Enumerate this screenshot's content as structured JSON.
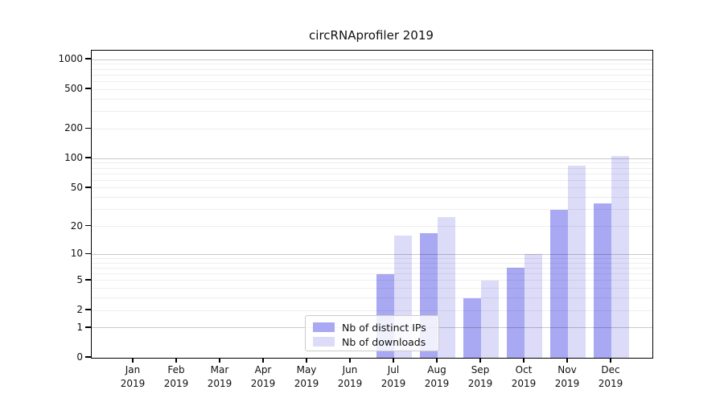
{
  "chart_data": {
    "type": "bar",
    "title": "circRNAprofiler 2019",
    "categories": [
      "Jan",
      "Feb",
      "Mar",
      "Apr",
      "May",
      "Jun",
      "Jul",
      "Aug",
      "Sep",
      "Oct",
      "Nov",
      "Dec"
    ],
    "x_year_label": "2019",
    "series": [
      {
        "name": "Nb of distinct IPs",
        "color": "#a9a9f3",
        "values": [
          0,
          0,
          0,
          0,
          0,
          0,
          6,
          17,
          3,
          7,
          30,
          35
        ]
      },
      {
        "name": "Nb of downloads",
        "color": "#dcdcf9",
        "values": [
          0,
          0,
          0,
          0,
          0,
          0,
          16,
          25,
          5,
          10,
          85,
          106
        ]
      }
    ],
    "y_ticks": [
      0,
      1,
      2,
      5,
      10,
      20,
      50,
      100,
      200,
      500,
      1000
    ],
    "y_scale": "log1p",
    "ylim": [
      0,
      1000
    ],
    "xlabel": "",
    "ylabel": "",
    "grid": "horizontal, minor log lines, drawn over bars",
    "legend_position": "lower center inside plot"
  },
  "colors": {
    "background": "#ffffff",
    "spine": "#000000",
    "major_grid": "#c9c9c9",
    "minor_grid": "#eeeeee",
    "bar_distinct_ips": "#a9a9f3",
    "bar_downloads": "#dcdcf9"
  }
}
